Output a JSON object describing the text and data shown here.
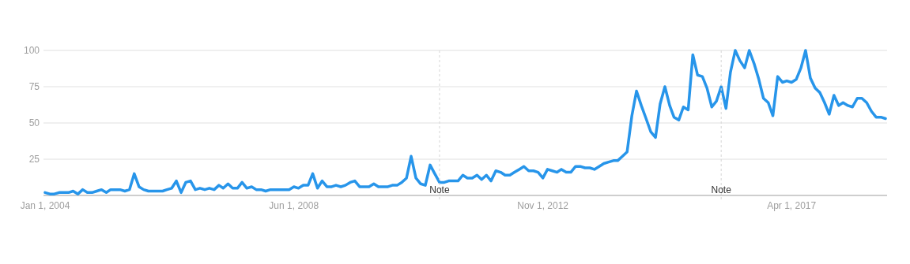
{
  "chart_data": {
    "type": "line",
    "x": [
      "2004-01",
      "2004-02",
      "2004-03",
      "2004-04",
      "2004-05",
      "2004-06",
      "2004-07",
      "2004-08",
      "2004-09",
      "2004-10",
      "2004-11",
      "2004-12",
      "2005-01",
      "2005-02",
      "2005-03",
      "2005-04",
      "2005-05",
      "2005-06",
      "2005-07",
      "2005-08",
      "2005-09",
      "2005-10",
      "2005-11",
      "2005-12",
      "2006-01",
      "2006-02",
      "2006-03",
      "2006-04",
      "2006-05",
      "2006-06",
      "2006-07",
      "2006-08",
      "2006-09",
      "2006-10",
      "2006-11",
      "2006-12",
      "2007-01",
      "2007-02",
      "2007-03",
      "2007-04",
      "2007-05",
      "2007-06",
      "2007-07",
      "2007-08",
      "2007-09",
      "2007-10",
      "2007-11",
      "2007-12",
      "2008-01",
      "2008-02",
      "2008-03",
      "2008-04",
      "2008-05",
      "2008-06",
      "2008-07",
      "2008-08",
      "2008-09",
      "2008-10",
      "2008-11",
      "2008-12",
      "2009-01",
      "2009-02",
      "2009-03",
      "2009-04",
      "2009-05",
      "2009-06",
      "2009-07",
      "2009-08",
      "2009-09",
      "2009-10",
      "2009-11",
      "2009-12",
      "2010-01",
      "2010-02",
      "2010-03",
      "2010-04",
      "2010-05",
      "2010-06",
      "2010-07",
      "2010-08",
      "2010-09",
      "2010-10",
      "2010-11",
      "2010-12",
      "2011-01",
      "2011-02",
      "2011-03",
      "2011-04",
      "2011-05",
      "2011-06",
      "2011-07",
      "2011-08",
      "2011-09",
      "2011-10",
      "2011-11",
      "2011-12",
      "2012-01",
      "2012-02",
      "2012-03",
      "2012-04",
      "2012-05",
      "2012-06",
      "2012-07",
      "2012-08",
      "2012-09",
      "2012-10",
      "2012-11",
      "2012-12",
      "2013-01",
      "2013-02",
      "2013-03",
      "2013-04",
      "2013-05",
      "2013-06",
      "2013-07",
      "2013-08",
      "2013-09",
      "2013-10",
      "2013-11",
      "2013-12",
      "2014-01",
      "2014-02",
      "2014-03",
      "2014-04",
      "2014-05",
      "2014-06",
      "2014-07",
      "2014-08",
      "2014-09",
      "2014-10",
      "2014-11",
      "2014-12",
      "2015-01",
      "2015-02",
      "2015-03",
      "2015-04",
      "2015-05",
      "2015-06",
      "2015-07",
      "2015-08",
      "2015-09",
      "2015-10",
      "2015-11",
      "2015-12",
      "2016-01",
      "2016-02",
      "2016-03",
      "2016-04",
      "2016-05",
      "2016-06",
      "2016-07",
      "2016-08",
      "2016-09",
      "2016-10",
      "2016-11",
      "2016-12",
      "2017-01",
      "2017-02",
      "2017-03",
      "2017-04",
      "2017-05",
      "2017-06",
      "2017-07",
      "2017-08",
      "2017-09",
      "2017-10",
      "2017-11",
      "2017-12",
      "2018-01",
      "2018-02",
      "2018-03",
      "2018-04",
      "2018-05",
      "2018-06",
      "2018-07",
      "2018-08",
      "2018-09",
      "2018-10",
      "2018-11",
      "2018-12"
    ],
    "series": [
      {
        "color": "#2795ea",
        "values": [
          2,
          1,
          1,
          2,
          2,
          2,
          3,
          1,
          4,
          2,
          2,
          3,
          4,
          2,
          4,
          4,
          4,
          3,
          4,
          15,
          6,
          4,
          3,
          3,
          3,
          3,
          4,
          5,
          10,
          2,
          9,
          10,
          4,
          5,
          4,
          5,
          4,
          7,
          5,
          8,
          5,
          5,
          9,
          5,
          6,
          4,
          4,
          3,
          4,
          4,
          4,
          4,
          4,
          6,
          5,
          7,
          7,
          15,
          5,
          10,
          6,
          6,
          7,
          6,
          7,
          9,
          10,
          6,
          6,
          6,
          8,
          6,
          6,
          6,
          7,
          7,
          9,
          12,
          27,
          12,
          8,
          7,
          21,
          15,
          9,
          9,
          10,
          10,
          10,
          14,
          12,
          12,
          14,
          11,
          14,
          10,
          17,
          16,
          14,
          14,
          16,
          18,
          20,
          17,
          17,
          16,
          12,
          18,
          17,
          16,
          18,
          16,
          16,
          20,
          20,
          19,
          19,
          18,
          20,
          22,
          23,
          24,
          24,
          27,
          30,
          55,
          72,
          62,
          53,
          44,
          40,
          63,
          75,
          62,
          54,
          52,
          61,
          59,
          97,
          83,
          82,
          74,
          61,
          65,
          75,
          60,
          85,
          100,
          93,
          88,
          100,
          91,
          80,
          67,
          64,
          55,
          82,
          78,
          79,
          78,
          80,
          88,
          100,
          81,
          74,
          71,
          64,
          56,
          69,
          62,
          64,
          62,
          61,
          67,
          67,
          64,
          58,
          54,
          54,
          53
        ]
      }
    ],
    "xlim": [
      "2004-01",
      "2018-12"
    ],
    "xticks": [
      {
        "value": "2004-01-01",
        "label": "Jan 1, 2004"
      },
      {
        "value": "2008-06-01",
        "label": "Jun 1, 2008"
      },
      {
        "value": "2012-11-01",
        "label": "Nov 1, 2012"
      },
      {
        "value": "2017-04-01",
        "label": "Apr 1, 2017"
      }
    ],
    "ylim": [
      0,
      100
    ],
    "yticks": [
      25,
      50,
      75,
      100
    ],
    "grid": "y",
    "marker": "none",
    "line_style": "solid",
    "ref_lines": [
      {
        "axis": "x",
        "value": "2011-01",
        "label": "Note"
      },
      {
        "axis": "x",
        "value": "2016-01",
        "label": "Note"
      }
    ]
  }
}
